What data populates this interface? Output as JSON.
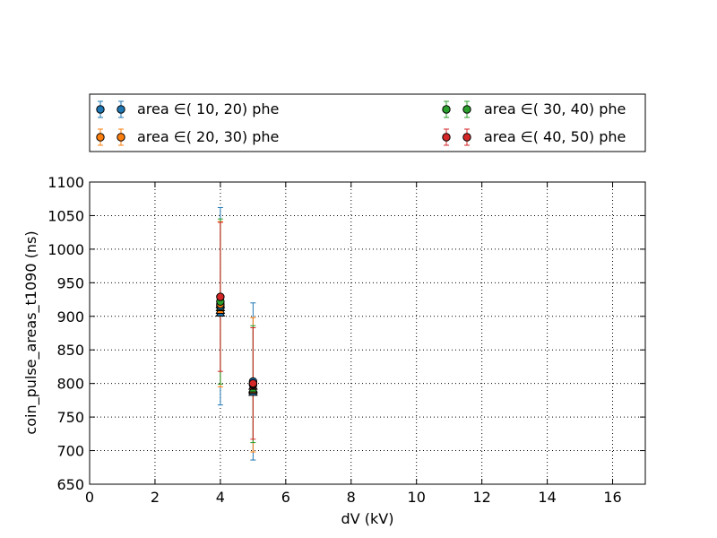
{
  "chart_data": {
    "type": "scatter",
    "title": "",
    "xlabel": "dV (kV)",
    "ylabel": "coin_pulse_areas_t1090 (ns)",
    "xlim": [
      0,
      17
    ],
    "ylim": [
      650,
      1100
    ],
    "xticks": [
      0,
      2,
      4,
      6,
      8,
      10,
      12,
      14,
      16
    ],
    "yticks": [
      650,
      700,
      750,
      800,
      850,
      900,
      950,
      1000,
      1050,
      1100
    ],
    "grid": true,
    "legend_position": "above plot, two columns",
    "legend_labels": [
      "area ∈( 10,  20) phe",
      "area ∈( 20,  30) phe",
      "area ∈( 30,  40) phe",
      "area ∈( 40,  50) phe"
    ],
    "series": [
      {
        "name": "area ∈( 10,  20) phe",
        "color": "#1f77b4",
        "points": [
          {
            "x": 4.0,
            "y": 915,
            "err": 147
          },
          {
            "x": 5.0,
            "y": 803,
            "err": 117
          }
        ],
        "extra_markers": [
          {
            "x": 4.0,
            "y": 905,
            "shape": "triangle"
          },
          {
            "x": 5.0,
            "y": 787,
            "shape": "triangle"
          }
        ]
      },
      {
        "name": "area ∈( 20,  30) phe",
        "color": "#ff7f0e",
        "points": [
          {
            "x": 4.0,
            "y": 918,
            "err": 123
          },
          {
            "x": 5.0,
            "y": 798,
            "err": 100
          }
        ],
        "extra_markers": [
          {
            "x": 4.0,
            "y": 909,
            "shape": "triangle"
          },
          {
            "x": 5.0,
            "y": 790,
            "shape": "triangle"
          }
        ]
      },
      {
        "name": "area ∈( 30,  40) phe",
        "color": "#2ca02c",
        "points": [
          {
            "x": 4.0,
            "y": 922,
            "err": 123
          },
          {
            "x": 5.0,
            "y": 799,
            "err": 87
          }
        ],
        "extra_markers": [
          {
            "x": 4.0,
            "y": 913,
            "shape": "triangle"
          },
          {
            "x": 5.0,
            "y": 792,
            "shape": "triangle"
          }
        ]
      },
      {
        "name": "area ∈( 40,  50) phe",
        "color": "#d62728",
        "points": [
          {
            "x": 4.0,
            "y": 929,
            "err": 111
          },
          {
            "x": 5.0,
            "y": 800,
            "err": 83
          }
        ],
        "extra_markers": [
          {
            "x": 4.0,
            "y": 917,
            "shape": "triangle"
          },
          {
            "x": 5.0,
            "y": 796,
            "shape": "triangle"
          }
        ]
      }
    ]
  }
}
